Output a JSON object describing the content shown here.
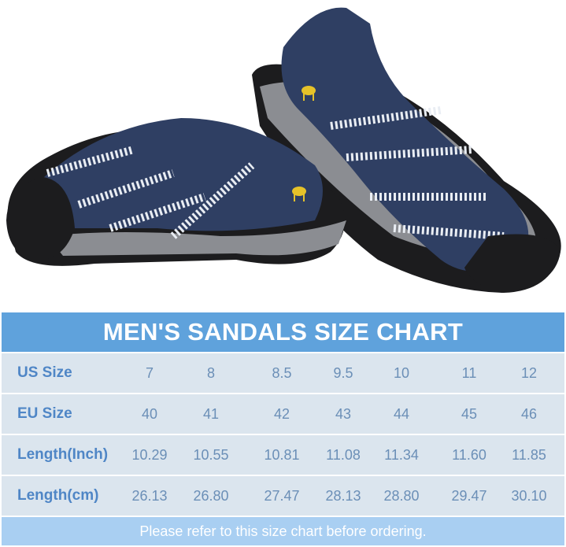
{
  "product": {
    "image_alt": "Pair of navy blue closed-toe sport sandals with white striped straps and gold camel logo",
    "logo_icon": "camel-logo-icon",
    "colors": {
      "upper": "#2f3f63",
      "sole": "#1c1c1e",
      "midsole": "#8b8d92",
      "strap": "#e9edf3",
      "logo": "#e6c229"
    }
  },
  "size_chart": {
    "title": "MEN'S SANDALS SIZE CHART",
    "rows": [
      {
        "label": "US Size",
        "values": [
          "7",
          "8",
          "8.5",
          "9.5",
          "10",
          "11",
          "12"
        ]
      },
      {
        "label": "EU Size",
        "values": [
          "40",
          "41",
          "42",
          "43",
          "44",
          "45",
          "46"
        ]
      },
      {
        "label": "Length(Inch)",
        "values": [
          "10.29",
          "10.55",
          "10.81",
          "11.08",
          "11.34",
          "11.60",
          "11.85"
        ]
      },
      {
        "label": "Length(cm)",
        "values": [
          "26.13",
          "26.80",
          "27.47",
          "28.13",
          "28.80",
          "29.47",
          "30.10"
        ]
      }
    ],
    "footer": "Please refer to this size chart before ordering.",
    "colors": {
      "header": "#5fa2dc",
      "row": "#dbe5ee",
      "footer": "#a9cff2",
      "label": "#4f86c6",
      "value": "#6b8fb7"
    }
  }
}
